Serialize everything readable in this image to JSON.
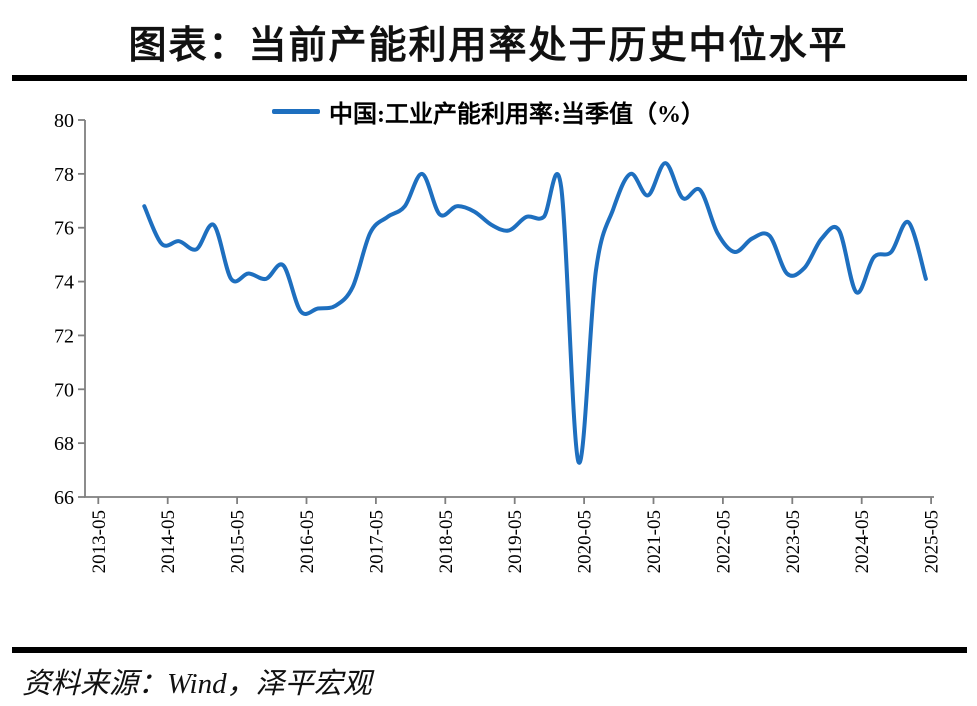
{
  "title": "图表：当前产能利用率处于历史中位水平",
  "legend": {
    "label": "中国:工业产能利用率:当季值（%）"
  },
  "source": "资料来源：Wind，泽平宏观",
  "colors": {
    "line": "#1E6FBF",
    "axis": "#7F7F7F",
    "text": "#000000",
    "rule": "#000000"
  },
  "chart_data": {
    "type": "line",
    "title": "图表：当前产能利用率处于历史中位水平",
    "xlabel": "",
    "ylabel": "",
    "ylim": [
      66,
      80
    ],
    "grid": false,
    "legend_position": "top-center",
    "y_ticks": [
      80,
      78,
      76,
      74,
      72,
      70,
      68,
      66
    ],
    "x_tick_labels": [
      "2013-05",
      "2014-05",
      "2015-05",
      "2016-05",
      "2017-05",
      "2018-05",
      "2019-05",
      "2020-05",
      "2021-05",
      "2022-05",
      "2023-05",
      "2024-05",
      "2025-05"
    ],
    "series": [
      {
        "name": "中国:工业产能利用率:当季值（%）",
        "periods": [
          "2013Q4",
          "2014Q1",
          "2014Q2",
          "2014Q3",
          "2014Q4",
          "2015Q1",
          "2015Q2",
          "2015Q3",
          "2015Q4",
          "2016Q1",
          "2016Q2",
          "2016Q3",
          "2016Q4",
          "2017Q1",
          "2017Q2",
          "2017Q3",
          "2017Q4",
          "2018Q1",
          "2018Q2",
          "2018Q3",
          "2018Q4",
          "2019Q1",
          "2019Q2",
          "2019Q3",
          "2019Q4",
          "2020Q1",
          "2020Q2",
          "2020Q3",
          "2020Q4",
          "2021Q1",
          "2021Q2",
          "2021Q3",
          "2021Q4",
          "2022Q1",
          "2022Q2",
          "2022Q3",
          "2022Q4",
          "2023Q1",
          "2023Q2",
          "2023Q3",
          "2023Q4",
          "2024Q1",
          "2024Q2",
          "2024Q3",
          "2024Q4",
          "2025Q1"
        ],
        "values": [
          76.8,
          75.4,
          75.5,
          75.2,
          76.1,
          74.1,
          74.3,
          74.1,
          74.6,
          72.9,
          73.0,
          73.1,
          73.8,
          75.8,
          76.4,
          76.8,
          78.0,
          76.5,
          76.8,
          76.6,
          76.1,
          75.9,
          76.4,
          76.4,
          77.5,
          67.3,
          74.4,
          76.7,
          78.0,
          77.2,
          78.4,
          77.1,
          77.4,
          75.8,
          75.1,
          75.6,
          75.7,
          74.3,
          74.5,
          75.6,
          75.9,
          73.6,
          74.9,
          75.1,
          76.2,
          74.1
        ]
      }
    ]
  }
}
